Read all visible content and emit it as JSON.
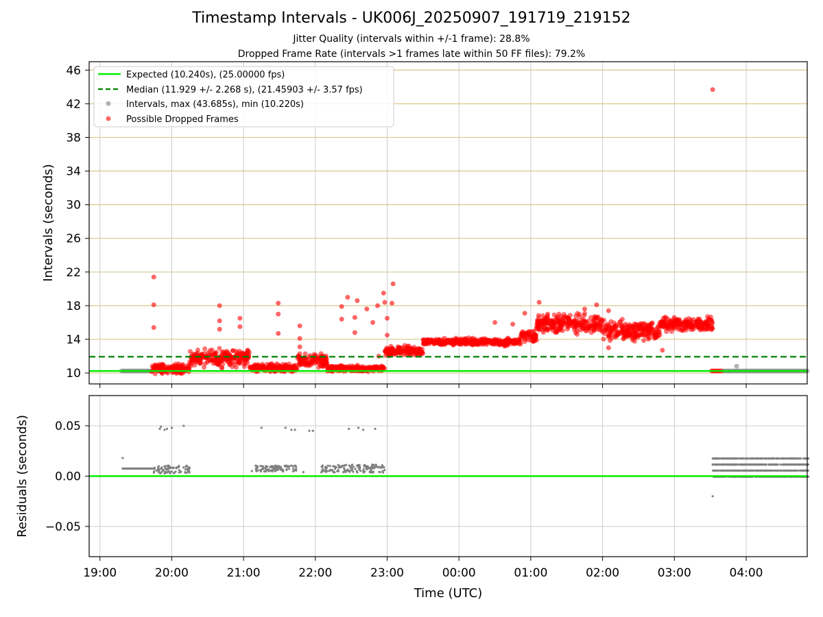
{
  "title": "Timestamp Intervals - UK006J_20250907_191719_219152",
  "subtitles": [
    "Jitter Quality (intervals within +/-1 frame): 28.8%",
    "Dropped Frame Rate (intervals >1 frames late within 50 FF files): 79.2%"
  ],
  "colors": {
    "expected": "#00ee00",
    "median": "#008000",
    "intervals": "#808080",
    "dropped": "#ff0000",
    "hgrid": "#d8c88a",
    "vgrid": "#cccccc"
  },
  "chart_data": [
    {
      "type": "scatter",
      "panel": "intervals",
      "xlabel": "",
      "ylabel": "Intervals (seconds)",
      "ylim": [
        8.7,
        47.0
      ],
      "yticks": [
        10,
        14,
        18,
        22,
        26,
        30,
        34,
        38,
        42,
        46
      ],
      "xlim_hours": [
        18.85,
        28.85
      ],
      "xticks": [
        "19:00",
        "20:00",
        "21:00",
        "22:00",
        "23:00",
        "00:00",
        "01:00",
        "02:00",
        "03:00",
        "04:00"
      ],
      "grid": true,
      "legend_position": "top-left",
      "legend": [
        "Expected (10.240s), (25.00000 fps)",
        "Median (11.929 +/- 2.268 s), (21.45903 +/- 3.57 fps)",
        "Intervals, max (43.685s), min (10.220s)",
        "Possible Dropped Frames"
      ],
      "expected": 10.24,
      "median": 11.929,
      "segments": [
        {
          "series": "Intervals",
          "x_start": "19:18",
          "x_end": "19:44",
          "y": 10.24
        },
        {
          "series": "Possible Dropped Frames",
          "x_start": "19:43",
          "x_end": "20:15",
          "y_base": 10.5,
          "y_spread": 0.8
        },
        {
          "series": "Possible Dropped Frames",
          "x_start": "20:15",
          "x_end": "21:05",
          "y_base": 11.8,
          "y_spread": 1.4
        },
        {
          "series": "Possible Dropped Frames",
          "x_start": "21:05",
          "x_end": "21:45",
          "y_base": 10.6,
          "y_spread": 0.6
        },
        {
          "series": "Possible Dropped Frames",
          "x_start": "21:45",
          "x_end": "22:10",
          "y_base": 11.4,
          "y_spread": 1.2
        },
        {
          "series": "Possible Dropped Frames",
          "x_start": "22:10",
          "x_end": "22:58",
          "y_base": 10.5,
          "y_spread": 0.5
        },
        {
          "series": "Possible Dropped Frames",
          "x_start": "22:58",
          "x_end": "23:30",
          "y_base": 12.6,
          "y_spread": 0.8
        },
        {
          "series": "Possible Dropped Frames",
          "x_start": "23:30",
          "x_end": "00:50",
          "y_base": 13.7,
          "y_spread": 0.6
        },
        {
          "series": "Possible Dropped Frames",
          "x_start": "00:50",
          "x_end": "01:05",
          "y_base": 14.3,
          "y_spread": 1.2
        },
        {
          "series": "Possible Dropped Frames",
          "x_start": "01:05",
          "x_end": "02:00",
          "y_base": 15.9,
          "y_spread": 1.5
        },
        {
          "series": "Possible Dropped Frames",
          "x_start": "02:00",
          "x_end": "02:48",
          "y_base": 15.0,
          "y_spread": 1.6
        },
        {
          "series": "Possible Dropped Frames",
          "x_start": "02:48",
          "x_end": "03:32",
          "y_base": 15.8,
          "y_spread": 1.1
        },
        {
          "series": "Possible Dropped Frames",
          "x_start": "03:31",
          "x_end": "03:40",
          "y": 10.24
        },
        {
          "series": "Intervals",
          "x_start": "03:40",
          "x_end": "04:52",
          "y": 10.24
        }
      ],
      "points": [
        {
          "series": "Possible Dropped Frames",
          "x": "19:45",
          "y": 21.4
        },
        {
          "series": "Possible Dropped Frames",
          "x": "19:45",
          "y": 18.1
        },
        {
          "series": "Possible Dropped Frames",
          "x": "19:45",
          "y": 15.4
        },
        {
          "series": "Possible Dropped Frames",
          "x": "20:40",
          "y": 18.0
        },
        {
          "series": "Possible Dropped Frames",
          "x": "20:40",
          "y": 16.2
        },
        {
          "series": "Possible Dropped Frames",
          "x": "20:40",
          "y": 15.2
        },
        {
          "series": "Possible Dropped Frames",
          "x": "20:57",
          "y": 16.5
        },
        {
          "series": "Possible Dropped Frames",
          "x": "20:57",
          "y": 15.5
        },
        {
          "series": "Possible Dropped Frames",
          "x": "21:29",
          "y": 18.3
        },
        {
          "series": "Possible Dropped Frames",
          "x": "21:29",
          "y": 17.0
        },
        {
          "series": "Possible Dropped Frames",
          "x": "21:29",
          "y": 14.7
        },
        {
          "series": "Possible Dropped Frames",
          "x": "21:47",
          "y": 15.6
        },
        {
          "series": "Possible Dropped Frames",
          "x": "21:47",
          "y": 14.1
        },
        {
          "series": "Possible Dropped Frames",
          "x": "21:47",
          "y": 13.1
        },
        {
          "series": "Possible Dropped Frames",
          "x": "22:22",
          "y": 17.9
        },
        {
          "series": "Possible Dropped Frames",
          "x": "22:22",
          "y": 16.4
        },
        {
          "series": "Possible Dropped Frames",
          "x": "22:27",
          "y": 19.0
        },
        {
          "series": "Possible Dropped Frames",
          "x": "22:33",
          "y": 14.8
        },
        {
          "series": "Possible Dropped Frames",
          "x": "22:33",
          "y": 16.6
        },
        {
          "series": "Possible Dropped Frames",
          "x": "22:35",
          "y": 18.6
        },
        {
          "series": "Possible Dropped Frames",
          "x": "22:43",
          "y": 17.6
        },
        {
          "series": "Possible Dropped Frames",
          "x": "22:48",
          "y": 16.0
        },
        {
          "series": "Possible Dropped Frames",
          "x": "22:52",
          "y": 18.0
        },
        {
          "series": "Possible Dropped Frames",
          "x": "22:53",
          "y": 12.0
        },
        {
          "series": "Possible Dropped Frames",
          "x": "22:57",
          "y": 19.5
        },
        {
          "series": "Possible Dropped Frames",
          "x": "22:58",
          "y": 18.4
        },
        {
          "series": "Possible Dropped Frames",
          "x": "23:00",
          "y": 16.5
        },
        {
          "series": "Possible Dropped Frames",
          "x": "23:00",
          "y": 14.5
        },
        {
          "series": "Possible Dropped Frames",
          "x": "23:05",
          "y": 20.6
        },
        {
          "series": "Possible Dropped Frames",
          "x": "23:04",
          "y": 18.3
        },
        {
          "series": "Possible Dropped Frames",
          "x": "00:30",
          "y": 16.0
        },
        {
          "series": "Possible Dropped Frames",
          "x": "00:45",
          "y": 15.8
        },
        {
          "series": "Possible Dropped Frames",
          "x": "00:55",
          "y": 17.1
        },
        {
          "series": "Possible Dropped Frames",
          "x": "01:07",
          "y": 18.4
        },
        {
          "series": "Possible Dropped Frames",
          "x": "01:45",
          "y": 17.6
        },
        {
          "series": "Possible Dropped Frames",
          "x": "01:55",
          "y": 18.1
        },
        {
          "series": "Possible Dropped Frames",
          "x": "02:05",
          "y": 17.4
        },
        {
          "series": "Possible Dropped Frames",
          "x": "02:05",
          "y": 13.0
        },
        {
          "series": "Possible Dropped Frames",
          "x": "02:50",
          "y": 12.7
        },
        {
          "series": "Possible Dropped Frames",
          "x": "03:32",
          "y": 43.685
        },
        {
          "series": "Intervals",
          "x": "03:52",
          "y": 10.8
        }
      ]
    },
    {
      "type": "scatter",
      "panel": "residuals",
      "xlabel": "Time (UTC)",
      "ylabel": "Residuals (seconds)",
      "ylim": [
        -0.08,
        0.08
      ],
      "yticks": [
        "−0.05",
        "0.00",
        "0.05"
      ],
      "ytick_values": [
        -0.05,
        0.0,
        0.05
      ],
      "xlim_hours": [
        18.85,
        28.85
      ],
      "xticks": [
        "19:00",
        "20:00",
        "21:00",
        "22:00",
        "23:00",
        "00:00",
        "01:00",
        "02:00",
        "03:00",
        "04:00"
      ],
      "grid": true,
      "zero_line": 0.0,
      "segments": [
        {
          "series": "Residuals",
          "x_start": "19:19",
          "x_end": "19:45",
          "y": 0.0075
        },
        {
          "series": "Residuals",
          "x_start": "19:45",
          "x_end": "20:15",
          "y_base": 0.0065,
          "y_spread": 0.004
        },
        {
          "series": "Residuals",
          "x_start": "21:10",
          "x_end": "21:45",
          "y_base": 0.0075,
          "y_spread": 0.003
        },
        {
          "series": "Residuals",
          "x_start": "22:05",
          "x_end": "22:58",
          "y_base": 0.0075,
          "y_spread": 0.004
        },
        {
          "series": "Residuals",
          "x_start": "03:32",
          "x_end": "04:52",
          "y_base": 0.0085,
          "y_spread": 0.009
        }
      ],
      "points": [
        {
          "series": "Residuals",
          "x": "19:19",
          "y": 0.018
        },
        {
          "series": "Residuals",
          "x": "19:50",
          "y": 0.047
        },
        {
          "series": "Residuals",
          "x": "19:51",
          "y": 0.049
        },
        {
          "series": "Residuals",
          "x": "19:54",
          "y": 0.046
        },
        {
          "series": "Residuals",
          "x": "19:56",
          "y": 0.047
        },
        {
          "series": "Residuals",
          "x": "20:00",
          "y": 0.048
        },
        {
          "series": "Residuals",
          "x": "20:10",
          "y": 0.05
        },
        {
          "series": "Residuals",
          "x": "21:07",
          "y": 0.005
        },
        {
          "series": "Residuals",
          "x": "21:15",
          "y": 0.048
        },
        {
          "series": "Residuals",
          "x": "21:35",
          "y": 0.048
        },
        {
          "series": "Residuals",
          "x": "21:40",
          "y": 0.046
        },
        {
          "series": "Residuals",
          "x": "21:43",
          "y": 0.046
        },
        {
          "series": "Residuals",
          "x": "21:50",
          "y": 0.004
        },
        {
          "series": "Residuals",
          "x": "21:55",
          "y": 0.045
        },
        {
          "series": "Residuals",
          "x": "21:58",
          "y": 0.045
        },
        {
          "series": "Residuals",
          "x": "22:28",
          "y": 0.047
        },
        {
          "series": "Residuals",
          "x": "22:36",
          "y": 0.048
        },
        {
          "series": "Residuals",
          "x": "22:40",
          "y": 0.046
        },
        {
          "series": "Residuals",
          "x": "22:50",
          "y": 0.047
        },
        {
          "series": "Residuals",
          "x": "03:32",
          "y": -0.02
        }
      ]
    }
  ]
}
